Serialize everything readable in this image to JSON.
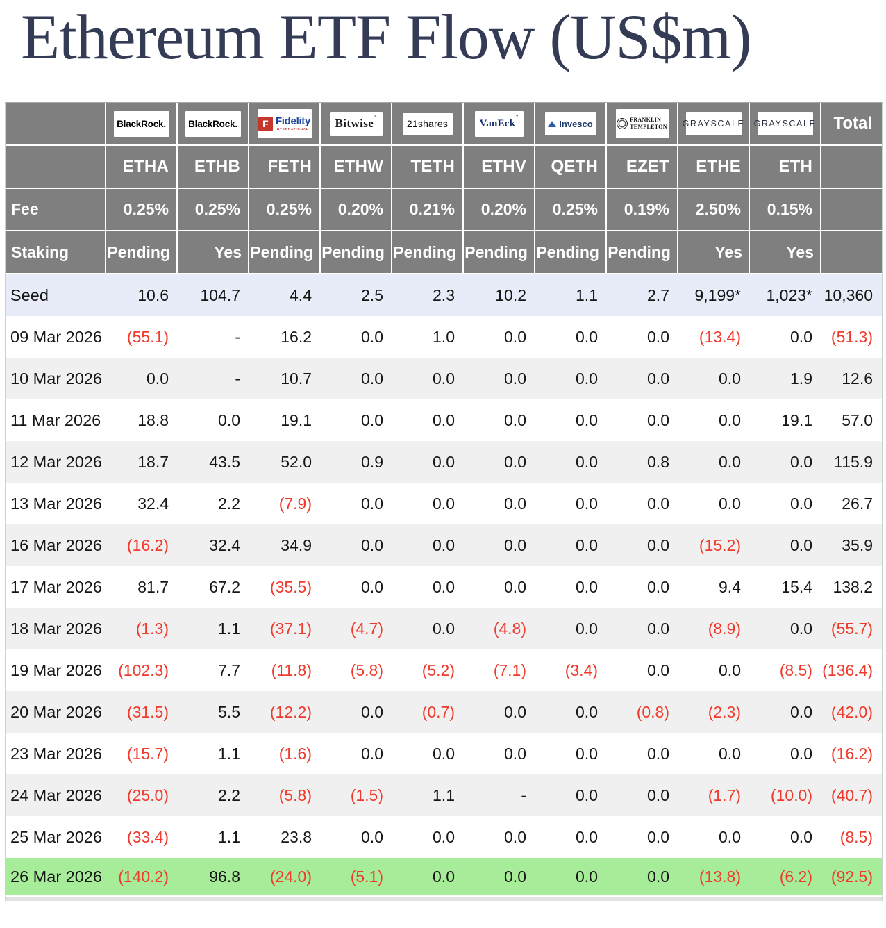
{
  "title": "Ethereum ETF Flow (US$m)",
  "table": {
    "total_label": "Total",
    "fee_label": "Fee",
    "staking_label": "Staking",
    "providers": [
      {
        "id": "blackrock",
        "lines": [
          "BlackRock."
        ]
      },
      {
        "id": "blackrock",
        "lines": [
          "BlackRock."
        ]
      },
      {
        "id": "fidelity",
        "icon": "F",
        "lines": [
          "Fidelity",
          "INTERNATIONAL"
        ]
      },
      {
        "id": "bitwise",
        "lines": [
          "Bitwise"
        ],
        "mark": "°"
      },
      {
        "id": "21shares",
        "lines": [
          "21shares"
        ]
      },
      {
        "id": "vaneck",
        "lines": [
          "VanEck"
        ],
        "mark": "°"
      },
      {
        "id": "invesco",
        "lines": [
          "Invesco"
        ]
      },
      {
        "id": "franklin",
        "lines": [
          "FRANKLIN",
          "TEMPLETON"
        ]
      },
      {
        "id": "grayscale",
        "lines": [
          "GRAYSCALE"
        ]
      },
      {
        "id": "grayscale",
        "lines": [
          "GRAYSCALE"
        ]
      }
    ],
    "tickers": [
      "ETHA",
      "ETHB",
      "FETH",
      "ETHW",
      "TETH",
      "ETHV",
      "QETH",
      "EZET",
      "ETHE",
      "ETH"
    ],
    "fees": [
      "0.25%",
      "0.25%",
      "0.25%",
      "0.20%",
      "0.21%",
      "0.20%",
      "0.25%",
      "0.19%",
      "2.50%",
      "0.15%"
    ],
    "staking": [
      "Pending",
      "Yes",
      "Pending",
      "Pending",
      "Pending",
      "Pending",
      "Pending",
      "Pending",
      "Yes",
      "Yes"
    ],
    "rows": [
      {
        "label": "Seed",
        "highlight": "seed",
        "values": [
          "10.6",
          "104.7",
          "4.4",
          "2.5",
          "2.3",
          "10.2",
          "1.1",
          "2.7",
          "9,199*",
          "1,023*",
          "10,360"
        ]
      },
      {
        "label": "09 Mar 2026",
        "values": [
          "(55.1)",
          "-",
          "16.2",
          "0.0",
          "1.0",
          "0.0",
          "0.0",
          "0.0",
          "(13.4)",
          "0.0",
          "(51.3)"
        ]
      },
      {
        "label": "10 Mar 2026",
        "values": [
          "0.0",
          "-",
          "10.7",
          "0.0",
          "0.0",
          "0.0",
          "0.0",
          "0.0",
          "0.0",
          "1.9",
          "12.6"
        ]
      },
      {
        "label": "11 Mar 2026",
        "values": [
          "18.8",
          "0.0",
          "19.1",
          "0.0",
          "0.0",
          "0.0",
          "0.0",
          "0.0",
          "0.0",
          "19.1",
          "57.0"
        ]
      },
      {
        "label": "12 Mar 2026",
        "values": [
          "18.7",
          "43.5",
          "52.0",
          "0.9",
          "0.0",
          "0.0",
          "0.0",
          "0.8",
          "0.0",
          "0.0",
          "115.9"
        ]
      },
      {
        "label": "13 Mar 2026",
        "values": [
          "32.4",
          "2.2",
          "(7.9)",
          "0.0",
          "0.0",
          "0.0",
          "0.0",
          "0.0",
          "0.0",
          "0.0",
          "26.7"
        ]
      },
      {
        "label": "16 Mar 2026",
        "values": [
          "(16.2)",
          "32.4",
          "34.9",
          "0.0",
          "0.0",
          "0.0",
          "0.0",
          "0.0",
          "(15.2)",
          "0.0",
          "35.9"
        ]
      },
      {
        "label": "17 Mar 2026",
        "values": [
          "81.7",
          "67.2",
          "(35.5)",
          "0.0",
          "0.0",
          "0.0",
          "0.0",
          "0.0",
          "9.4",
          "15.4",
          "138.2"
        ]
      },
      {
        "label": "18 Mar 2026",
        "values": [
          "(1.3)",
          "1.1",
          "(37.1)",
          "(4.7)",
          "0.0",
          "(4.8)",
          "0.0",
          "0.0",
          "(8.9)",
          "0.0",
          "(55.7)"
        ]
      },
      {
        "label": "19 Mar 2026",
        "values": [
          "(102.3)",
          "7.7",
          "(11.8)",
          "(5.8)",
          "(5.2)",
          "(7.1)",
          "(3.4)",
          "0.0",
          "0.0",
          "(8.5)",
          "(136.4)"
        ]
      },
      {
        "label": "20 Mar 2026",
        "values": [
          "(31.5)",
          "5.5",
          "(12.2)",
          "0.0",
          "(0.7)",
          "0.0",
          "0.0",
          "(0.8)",
          "(2.3)",
          "0.0",
          "(42.0)"
        ]
      },
      {
        "label": "23 Mar 2026",
        "values": [
          "(15.7)",
          "1.1",
          "(1.6)",
          "0.0",
          "0.0",
          "0.0",
          "0.0",
          "0.0",
          "0.0",
          "0.0",
          "(16.2)"
        ]
      },
      {
        "label": "24 Mar 2026",
        "values": [
          "(25.0)",
          "2.2",
          "(5.8)",
          "(1.5)",
          "1.1",
          "-",
          "0.0",
          "0.0",
          "(1.7)",
          "(10.0)",
          "(40.7)"
        ]
      },
      {
        "label": "25 Mar 2026",
        "values": [
          "(33.4)",
          "1.1",
          "23.8",
          "0.0",
          "0.0",
          "0.0",
          "0.0",
          "0.0",
          "0.0",
          "0.0",
          "(8.5)"
        ]
      },
      {
        "label": "26 Mar 2026",
        "highlight": "green",
        "values": [
          "(140.2)",
          "96.8",
          "(24.0)",
          "(5.1)",
          "0.0",
          "0.0",
          "0.0",
          "0.0",
          "(13.8)",
          "(6.2)",
          "(92.5)"
        ]
      }
    ]
  },
  "colors": {
    "title_text": "#343b55",
    "header_bg": "#7f7f7f",
    "header_text": "#ffffff",
    "seed_row_bg": "#e8ebf8",
    "alt_row_bg": "#f0f0f0",
    "latest_row_bg": "#a7ec98",
    "negative_value": "#f03a2c"
  }
}
